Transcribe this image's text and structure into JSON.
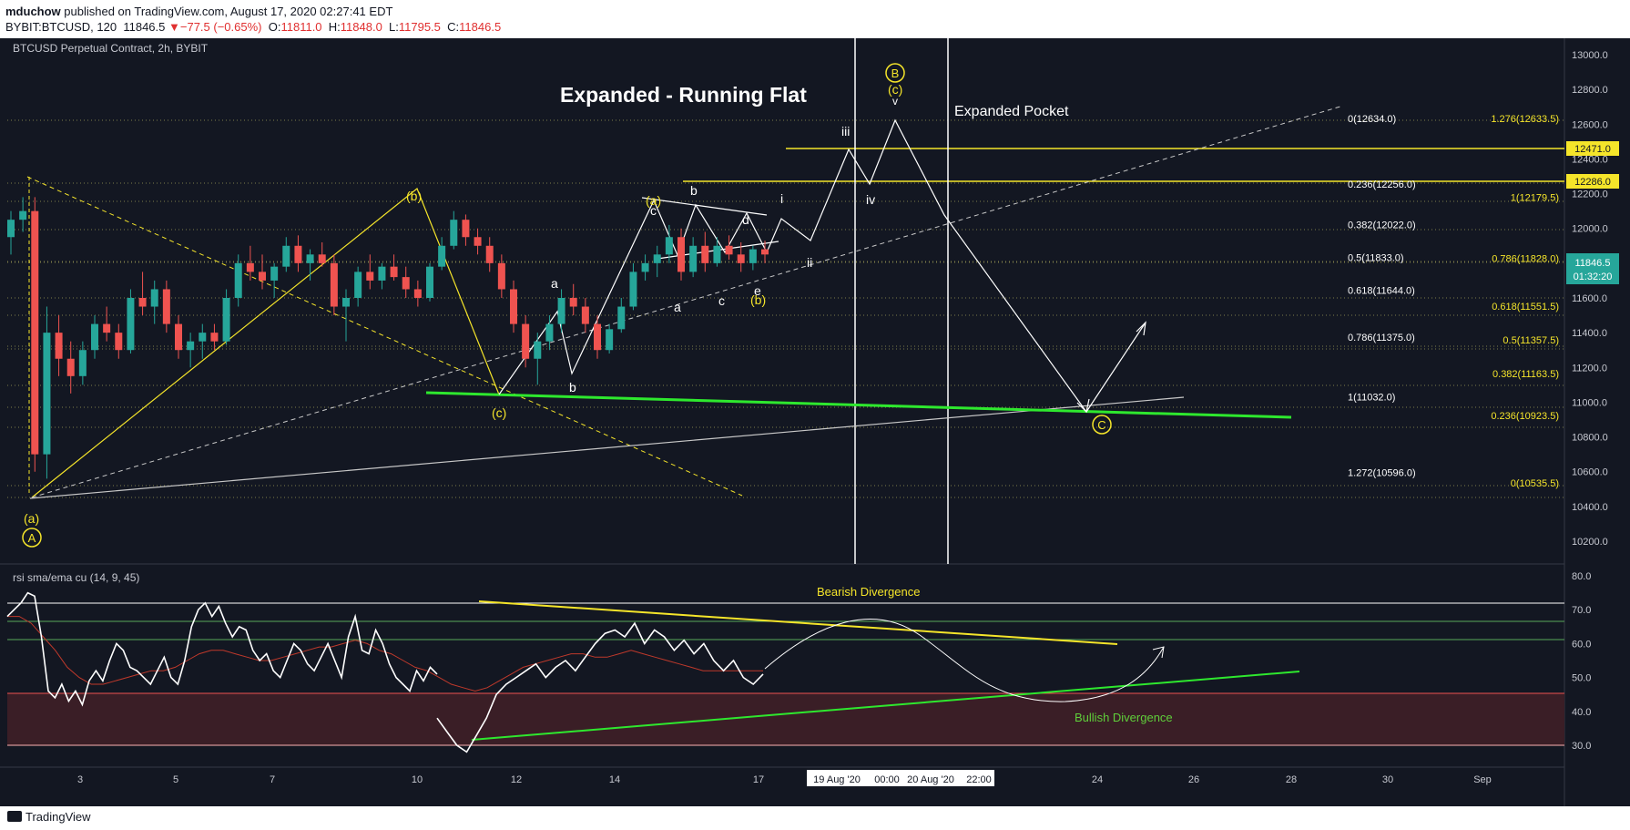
{
  "header": {
    "author": "mduchow",
    "published": " published on TradingView.com, August 17, 2020 02:27:41 EDT",
    "symbol_line": "BYBIT:BTCUSD, 120",
    "last": "11846.5",
    "change_arrow": "▼",
    "change": "−77.5 (−0.65%)",
    "o_label": "O:",
    "o": "11811.0",
    "h_label": "H:",
    "h": "11848.0",
    "l_label": "L:",
    "l": "11795.5",
    "c_label": "C:",
    "c": "11846.5"
  },
  "chart_title": "BTCUSD Perpetual Contract, 2h, BYBIT",
  "footer": {
    "brand": "TradingView"
  },
  "colors": {
    "background": "#131722",
    "up": "#26a69a",
    "down": "#ef5350",
    "fib_yellow": "#f5e52a",
    "fib_white": "#ffffff",
    "green_line": "#2ee82e",
    "rsi_band_fill": "#3a1e26",
    "price_tag": "#26a69a"
  },
  "chart_data": [
    {
      "type": "candlestick",
      "title": "BTCUSD Perpetual Contract, 2h, BYBIT",
      "annotation_title": "Expanded - Running Flat",
      "x_ticks": [
        "3",
        "5",
        "7",
        "10",
        "12",
        "14",
        "17",
        "19 Aug '20",
        "00:00",
        "20 Aug '20",
        "22:00",
        "24",
        "26",
        "28",
        "30",
        "Sep"
      ],
      "y_ticks": [
        "13000.0",
        "12800.0",
        "12600.0",
        "12400.0",
        "12200.0",
        "12000.0",
        "11800.0",
        "11600.0",
        "11400.0",
        "11200.0",
        "11000.0",
        "10800.0",
        "10600.0",
        "10400.0",
        "10200.0"
      ],
      "ylim": [
        10200,
        13050
      ],
      "last_price": "11846.5",
      "countdown": "01:32:20",
      "price_tags": [
        "12471.0",
        "12286.0"
      ],
      "candles_approx": [
        [
          11950,
          12100,
          11850,
          12050
        ],
        [
          12050,
          12180,
          11980,
          12100
        ],
        [
          12100,
          12180,
          10600,
          10700
        ],
        [
          10700,
          11550,
          10560,
          11400
        ],
        [
          11400,
          11500,
          11150,
          11250
        ],
        [
          11250,
          11350,
          11050,
          11150
        ],
        [
          11150,
          11350,
          11100,
          11300
        ],
        [
          11300,
          11500,
          11250,
          11450
        ],
        [
          11450,
          11550,
          11350,
          11400
        ],
        [
          11400,
          11450,
          11250,
          11300
        ],
        [
          11300,
          11650,
          11280,
          11600
        ],
        [
          11600,
          11750,
          11500,
          11550
        ],
        [
          11550,
          11700,
          11450,
          11650
        ],
        [
          11650,
          11700,
          11400,
          11450
        ],
        [
          11450,
          11500,
          11250,
          11300
        ],
        [
          11300,
          11400,
          11200,
          11350
        ],
        [
          11350,
          11450,
          11250,
          11400
        ],
        [
          11400,
          11450,
          11300,
          11350
        ],
        [
          11350,
          11650,
          11330,
          11600
        ],
        [
          11600,
          11850,
          11550,
          11800
        ],
        [
          11800,
          11900,
          11700,
          11750
        ],
        [
          11750,
          11850,
          11650,
          11700
        ],
        [
          11700,
          11800,
          11600,
          11780
        ],
        [
          11780,
          11950,
          11750,
          11900
        ],
        [
          11900,
          11960,
          11750,
          11800
        ],
        [
          11800,
          11880,
          11700,
          11850
        ],
        [
          11850,
          11920,
          11780,
          11800
        ],
        [
          11800,
          11850,
          11500,
          11550
        ],
        [
          11550,
          11650,
          11350,
          11600
        ],
        [
          11600,
          11780,
          11550,
          11750
        ],
        [
          11750,
          11850,
          11650,
          11700
        ],
        [
          11700,
          11800,
          11650,
          11780
        ],
        [
          11780,
          11850,
          11700,
          11720
        ],
        [
          11720,
          11780,
          11600,
          11650
        ],
        [
          11650,
          11700,
          11550,
          11600
        ],
        [
          11600,
          11800,
          11580,
          11780
        ],
        [
          11780,
          11950,
          11760,
          11900
        ],
        [
          11900,
          12100,
          11880,
          12050
        ],
        [
          12050,
          12080,
          11900,
          11950
        ],
        [
          11950,
          12000,
          11850,
          11900
        ],
        [
          11900,
          11950,
          11750,
          11800
        ],
        [
          11800,
          11850,
          11600,
          11650
        ],
        [
          11650,
          11700,
          11400,
          11450
        ],
        [
          11450,
          11500,
          11200,
          11250
        ],
        [
          11250,
          11400,
          11100,
          11350
        ],
        [
          11350,
          11500,
          11300,
          11450
        ],
        [
          11450,
          11650,
          11400,
          11600
        ],
        [
          11600,
          11680,
          11500,
          11550
        ],
        [
          11550,
          11600,
          11400,
          11450
        ],
        [
          11450,
          11500,
          11250,
          11300
        ],
        [
          11300,
          11450,
          11280,
          11420
        ],
        [
          11420,
          11600,
          11400,
          11550
        ],
        [
          11550,
          11800,
          11530,
          11750
        ],
        [
          11750,
          11850,
          11700,
          11800
        ],
        [
          11800,
          11900,
          11720,
          11850
        ],
        [
          11850,
          12020,
          11800,
          11950
        ],
        [
          11950,
          12000,
          11700,
          11750
        ],
        [
          11750,
          11950,
          11720,
          11900
        ],
        [
          11900,
          11980,
          11750,
          11800
        ],
        [
          11800,
          11950,
          11780,
          11900
        ],
        [
          11900,
          11960,
          11820,
          11850
        ],
        [
          11850,
          11920,
          11750,
          11800
        ],
        [
          11800,
          11900,
          11760,
          11880
        ],
        [
          11880,
          11930,
          11800,
          11850
        ]
      ],
      "annotations": {
        "waves": [
          "(a)",
          "(b)",
          "(c)",
          "(a)",
          "(b)",
          "(c)",
          "a",
          "b",
          "c",
          "a",
          "b",
          "c",
          "d",
          "e",
          "i",
          "ii",
          "iii",
          "iv"
        ],
        "circled": [
          "A",
          "B",
          "C"
        ],
        "expanded_pocket": "Expanded Pocket"
      },
      "fib_white": [
        {
          "label": "0(12634.0)",
          "value": 12634.0
        },
        {
          "label": "0.236(12256.0)",
          "value": 12256.0
        },
        {
          "label": "0.382(12022.0)",
          "value": 12022.0
        },
        {
          "label": "0.5(11833.0)",
          "value": 11833.0
        },
        {
          "label": "0.618(11644.0)",
          "value": 11644.0
        },
        {
          "label": "0.786(11375.0)",
          "value": 11375.0
        },
        {
          "label": "1(11032.0)",
          "value": 11032.0
        },
        {
          "label": "1.272(10596.0)",
          "value": 10596.0
        }
      ],
      "fib_yellow": [
        {
          "label": "1.276(12633.5)",
          "value": 12633.5
        },
        {
          "label": "1(12179.5)",
          "value": 12179.5
        },
        {
          "label": "0.786(11828.0)",
          "value": 11828.0
        },
        {
          "label": "0.618(11551.5)",
          "value": 11551.5
        },
        {
          "label": "0.5(11357.5)",
          "value": 11357.5
        },
        {
          "label": "0.382(11163.5)",
          "value": 11163.5
        },
        {
          "label": "0.236(10923.5)",
          "value": 10923.5
        },
        {
          "label": "0(10535.5)",
          "value": 10535.5
        }
      ]
    },
    {
      "type": "line",
      "title": "rsi sma/ema cu (14, 9, 45)",
      "y_ticks": [
        "80.0",
        "70.0",
        "60.0",
        "50.0",
        "40.0",
        "30.0"
      ],
      "ylim": [
        26,
        80
      ],
      "levels": [
        70,
        65,
        60,
        45,
        30
      ],
      "annotations": {
        "bearish": "Bearish Divergence",
        "bullish": "Bullish Divergence"
      },
      "rsi_approx": [
        68,
        70,
        72,
        75,
        74,
        62,
        46,
        44,
        48,
        43,
        46,
        42,
        49,
        52,
        49,
        55,
        60,
        58,
        53,
        52,
        50,
        48,
        52,
        56,
        50,
        48,
        55,
        65,
        70,
        72,
        68,
        71,
        66,
        62,
        65,
        64,
        58,
        55,
        57,
        52,
        50,
        55,
        60,
        58,
        54,
        52,
        56,
        60,
        55,
        50,
        62,
        68,
        58,
        57,
        64,
        60,
        54,
        50,
        48,
        46,
        52,
        49,
        53,
        51
      ],
      "rsi_tail_approx": [
        38,
        34,
        30,
        28,
        33,
        38,
        45,
        48,
        50,
        52,
        54,
        50,
        53,
        55,
        52,
        56,
        60,
        63,
        64,
        62,
        66,
        60,
        64,
        62,
        58,
        61,
        57,
        60,
        55,
        52,
        55,
        50,
        48,
        51
      ],
      "sma_approx": [
        68,
        68,
        66,
        62,
        58,
        53,
        50,
        48,
        48,
        49,
        50,
        51,
        52,
        52,
        53,
        55,
        57,
        58,
        58,
        57,
        56,
        55,
        55,
        56,
        57,
        58,
        59,
        59,
        60,
        61,
        60,
        58,
        57,
        55,
        53,
        52,
        50,
        48,
        47,
        46,
        47,
        49,
        51,
        53,
        54,
        55,
        56,
        57,
        57,
        56,
        56,
        57,
        58,
        57,
        56,
        55,
        54,
        53,
        52,
        52,
        52,
        52,
        52,
        52
      ]
    }
  ]
}
